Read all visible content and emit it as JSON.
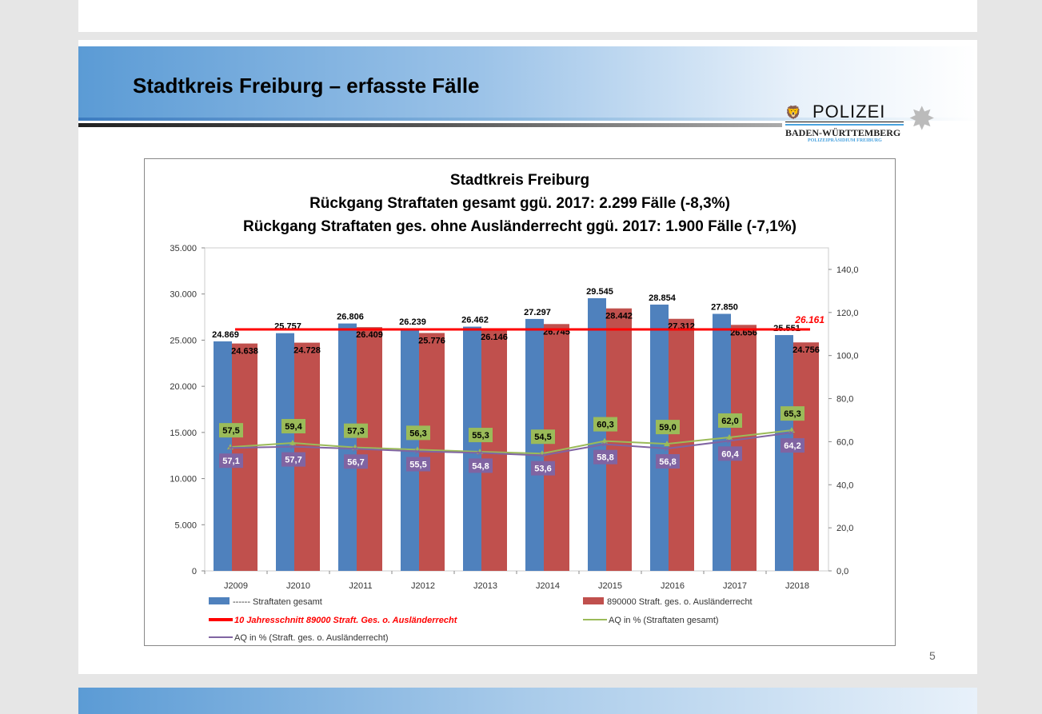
{
  "slide": {
    "title": "Stadtkreis Freiburg – erfasste Fälle",
    "page_number": "5",
    "logo": {
      "name": "POLIZEI",
      "state": "BADEN-WÜRTTEMBERG",
      "unit": "POLIZEIPRÄSIDIUM FREIBURG"
    }
  },
  "chart_data": {
    "type": "bar",
    "title": [
      "Stadtkreis Freiburg",
      "Rückgang Straftaten gesamt ggü. 2017: 2.299 Fälle (-8,3%)",
      "Rückgang Straftaten ges. ohne Ausländerrecht ggü. 2017: 1.900 Fälle (-7,1%)"
    ],
    "categories": [
      "J2009",
      "J2010",
      "J2011",
      "J2012",
      "J2013",
      "J2014",
      "J2015",
      "J2016",
      "J2017",
      "J2018"
    ],
    "y_left": {
      "min": 0,
      "max": 35000,
      "ticks": [
        "0",
        "5.000",
        "10.000",
        "15.000",
        "20.000",
        "25.000",
        "30.000",
        "35.000"
      ]
    },
    "y_right": {
      "min": 0,
      "max": 150,
      "ticks": [
        "0,0",
        "20,0",
        "40,0",
        "60,0",
        "80,0",
        "100,0",
        "120,0",
        "140,0"
      ]
    },
    "series": [
      {
        "name": "------ Straftaten gesamt",
        "kind": "bar",
        "axis": "left",
        "color": "#4f81bd",
        "values": [
          24869,
          25757,
          26806,
          26239,
          26462,
          27297,
          29545,
          28854,
          27850,
          25551
        ],
        "labels": [
          "24.869",
          "25.757",
          "26.806",
          "26.239",
          "26.462",
          "27.297",
          "29.545",
          "28.854",
          "27.850",
          "25.551"
        ]
      },
      {
        "name": "890000 Straft. ges.  o. Ausländerrecht",
        "kind": "bar",
        "axis": "left",
        "color": "#c0504d",
        "values": [
          24638,
          24728,
          26409,
          25776,
          26146,
          26745,
          28442,
          27312,
          26656,
          24756
        ],
        "labels": [
          "24.638",
          "24.728",
          "26.409",
          "25.776",
          "26.146",
          "26.745",
          "28.442",
          "27.312",
          "26.656",
          "24.756"
        ]
      },
      {
        "name": "10 Jahresschnitt 89000 Straft. Ges. o. Ausländerrecht",
        "kind": "hline",
        "axis": "left",
        "color": "#ff0000",
        "value": 26161,
        "label": "26.161"
      },
      {
        "name": "AQ in % (Straftaten gesamt)",
        "kind": "line",
        "axis": "right",
        "color": "#9bbb59",
        "values": [
          57.5,
          59.4,
          57.3,
          56.3,
          55.3,
          54.5,
          60.3,
          59.0,
          62.0,
          65.3
        ],
        "labels": [
          "57,5",
          "59,4",
          "57,3",
          "56,3",
          "55,3",
          "54,5",
          "60,3",
          "59,0",
          "62,0",
          "65,3"
        ]
      },
      {
        "name": "AQ in % (Straft. ges.  o. Ausländerrecht)",
        "kind": "line",
        "axis": "right",
        "color": "#8064a2",
        "values": [
          57.1,
          57.7,
          56.7,
          55.5,
          54.8,
          53.6,
          58.8,
          56.8,
          60.4,
          64.2
        ],
        "labels": [
          "57,1",
          "57,7",
          "56,7",
          "55,5",
          "54,8",
          "53,6",
          "58,8",
          "56,8",
          "60,4",
          "64,2"
        ]
      }
    ],
    "legend_position": "bottom",
    "grid": false
  }
}
